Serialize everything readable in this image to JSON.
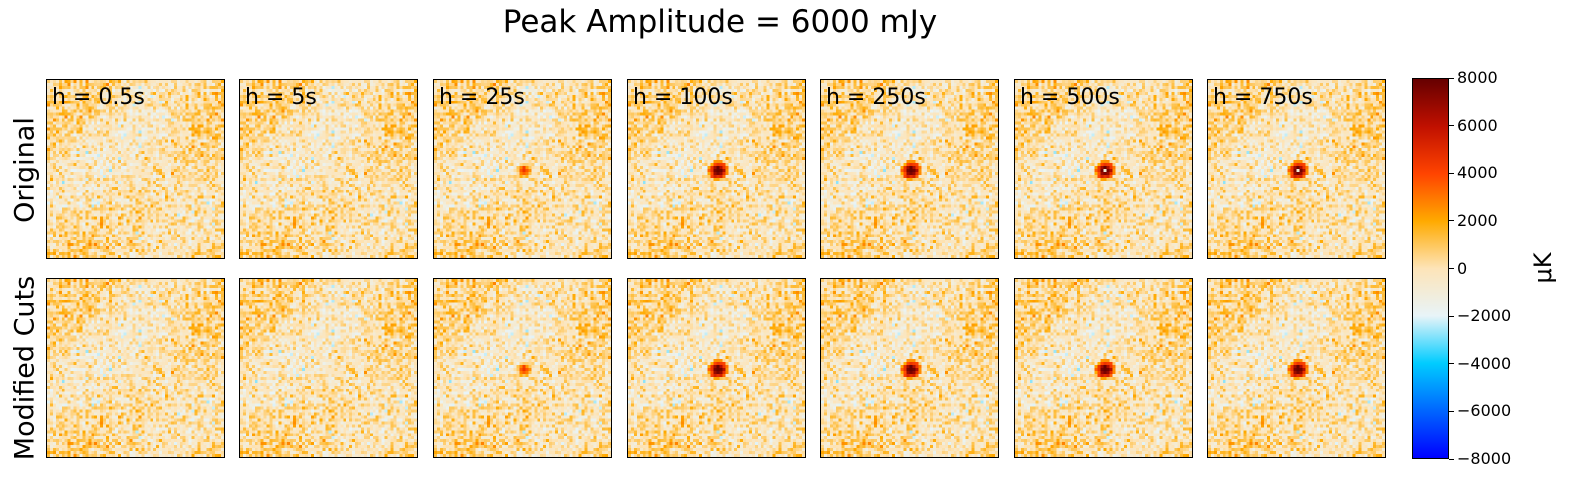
{
  "chart_data": {
    "type": "heatmap",
    "title": "Peak Amplitude = 6000 mJy",
    "rows": [
      {
        "label": "Original",
        "key": "original"
      },
      {
        "label": "Modified Cuts",
        "key": "modified"
      }
    ],
    "panels": [
      {
        "label": "h = 0.5s",
        "source_strength": 0.0,
        "ring_hole": false,
        "hole_modified": false,
        "size": 0.0
      },
      {
        "label": "h = 5s",
        "source_strength": 0.0,
        "ring_hole": false,
        "hole_modified": false,
        "size": 0.0
      },
      {
        "label": "h = 25s",
        "source_strength": 0.55,
        "ring_hole": false,
        "hole_modified": false,
        "size": 0.7
      },
      {
        "label": "h = 100s",
        "source_strength": 1.0,
        "ring_hole": false,
        "hole_modified": false,
        "size": 1.0
      },
      {
        "label": "h = 250s",
        "source_strength": 1.0,
        "ring_hole": false,
        "hole_modified": false,
        "size": 1.0
      },
      {
        "label": "h = 500s",
        "source_strength": 1.0,
        "ring_hole": true,
        "hole_modified": false,
        "size": 1.0
      },
      {
        "label": "h = 750s",
        "source_strength": 1.0,
        "ring_hole": true,
        "hole_modified": false,
        "size": 1.0
      }
    ],
    "colorbar": {
      "label": "μK",
      "vmin": -8000,
      "vmax": 8000,
      "ticks": [
        "8000",
        "6000",
        "4000",
        "2000",
        "0",
        "−2000",
        "−4000",
        "−6000",
        "−8000"
      ],
      "tick_values": [
        8000,
        6000,
        4000,
        2000,
        0,
        -2000,
        -4000,
        -6000,
        -8000
      ],
      "colors": [
        "#0000ff",
        "#0066ff",
        "#00ccff",
        "#e8f4f8",
        "#fde4b8",
        "#ffaa00",
        "#ff4400",
        "#c01000",
        "#660000"
      ]
    },
    "noise_rms_uK": 900
  }
}
